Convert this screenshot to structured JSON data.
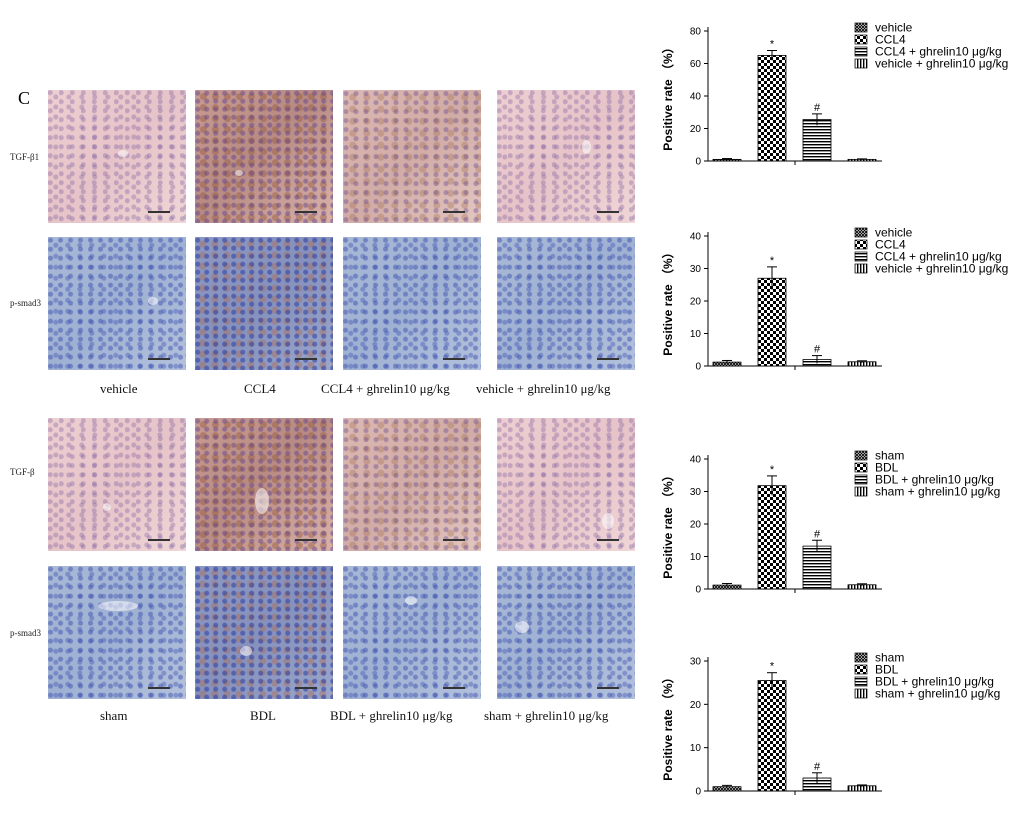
{
  "panel_letter": "C",
  "row_labels": [
    "TGF-β1",
    "p-smad3",
    "TGF-β",
    "p-smad3"
  ],
  "captions_top": [
    "vehicle",
    "CCL4",
    "CCL4 + ghrelin10 μg/kg",
    "vehicle + ghrelin10 μg/kg"
  ],
  "captions_bottom": [
    "sham",
    "BDL",
    "BDL + ghrelin10 μg/kg",
    "sham + ghrelin10 μg/kg"
  ],
  "colors": {
    "stain_pink": "#e6c3c8",
    "stain_blue": "#9fb1d3",
    "bar_fill": "#ffffff",
    "axis": "#000000"
  },
  "chart_data": [
    {
      "type": "bar",
      "ylabel": "Positive rate （%）",
      "ylim": [
        0,
        80
      ],
      "yticks": [
        "0",
        "20",
        "40",
        "60",
        "80"
      ],
      "legend": [
        "vehicle",
        "CCL4",
        "CCL4 + ghrelin10 μg/kg",
        "vehicle + ghrelin10 μg/kg"
      ],
      "legend_position": "top-right",
      "patterns": [
        "dense-crosshatch",
        "checker",
        "horizontal",
        "vertical"
      ],
      "values": [
        1,
        65,
        25.5,
        1
      ],
      "errors": [
        0.5,
        3,
        3.5,
        0.3
      ],
      "annotations": [
        "",
        "*",
        "#",
        ""
      ]
    },
    {
      "type": "bar",
      "ylabel": "Positive rate （%）",
      "ylim": [
        0,
        40
      ],
      "yticks": [
        "0",
        "10",
        "20",
        "30",
        "40"
      ],
      "legend": [
        "vehicle",
        "CCL4",
        "CCL4 + ghrelin10 μg/kg",
        "vehicle + ghrelin10 μg/kg"
      ],
      "legend_position": "top-right",
      "patterns": [
        "dense-crosshatch",
        "checker",
        "horizontal",
        "vertical"
      ],
      "values": [
        1.2,
        27,
        2,
        1.3
      ],
      "errors": [
        0.5,
        3.5,
        1.2,
        0.3
      ],
      "annotations": [
        "",
        "*",
        "#",
        ""
      ]
    },
    {
      "type": "bar",
      "ylabel": "Positive rate （%）",
      "ylim": [
        0,
        40
      ],
      "yticks": [
        "0",
        "10",
        "20",
        "30",
        "40"
      ],
      "legend": [
        "sham",
        "BDL",
        "BDL + ghrelin10 μg/kg",
        "sham + ghrelin10 μg/kg"
      ],
      "legend_position": "top-right",
      "patterns": [
        "dense-crosshatch",
        "checker",
        "horizontal",
        "vertical"
      ],
      "values": [
        1.2,
        31.8,
        13.2,
        1.3
      ],
      "errors": [
        0.5,
        3,
        1.8,
        0.3
      ],
      "annotations": [
        "",
        "*",
        "#",
        ""
      ]
    },
    {
      "type": "bar",
      "ylabel": "Positive rate （%）",
      "ylim": [
        0,
        30
      ],
      "yticks": [
        "0",
        "10",
        "20",
        "30"
      ],
      "legend": [
        "sham",
        "BDL",
        "BDL + ghrelin10 μg/kg",
        "sham + ghrelin10 μg/kg"
      ],
      "legend_position": "top-right",
      "patterns": [
        "dense-crosshatch",
        "checker",
        "horizontal",
        "vertical"
      ],
      "values": [
        1,
        25.5,
        3,
        1.2
      ],
      "errors": [
        0.3,
        1.8,
        1.2,
        0.2
      ],
      "annotations": [
        "",
        "*",
        "#",
        ""
      ]
    }
  ]
}
